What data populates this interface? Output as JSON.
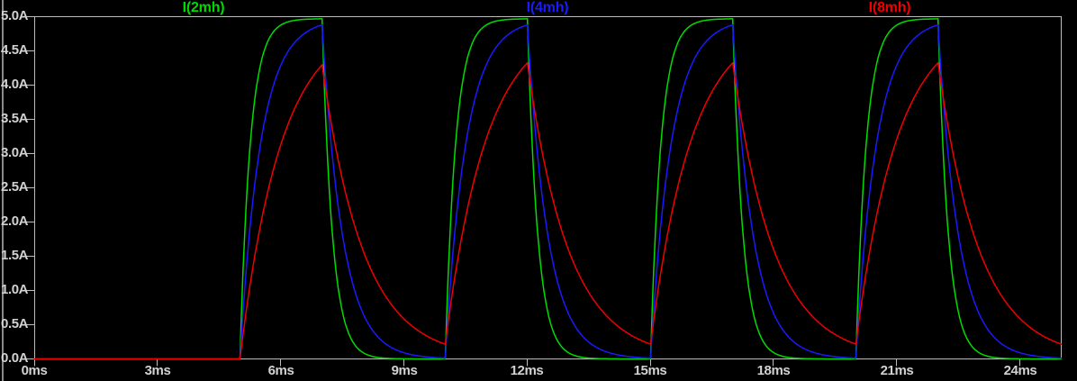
{
  "window": {
    "background": "#000000",
    "left_border_color": "#8a8a8a"
  },
  "chart_data": {
    "type": "line",
    "title": "",
    "x_unit": "ms",
    "y_unit": "A",
    "xlim_ms": [
      0,
      25
    ],
    "ylim_A": [
      0,
      5
    ],
    "grid": false,
    "legend_position": "top",
    "axis_color": "#bcbcbc",
    "text_color": "#d2d2d2",
    "x_ticks": [
      "0ms",
      "3ms",
      "6ms",
      "9ms",
      "12ms",
      "15ms",
      "18ms",
      "21ms",
      "24ms"
    ],
    "y_ticks": [
      "5.0A",
      "4.5A",
      "4.0A",
      "3.5A",
      "3.0A",
      "2.5A",
      "2.0A",
      "1.5A",
      "1.0A",
      "0.5A",
      "0.0A"
    ],
    "pulse_drive": {
      "delay_ms": 5,
      "on_ms": 2,
      "period_ms": 5,
      "steady_amplitude_A": 4.97
    },
    "sample_t_ms": [
      0,
      1,
      2,
      3,
      4,
      5,
      6,
      7,
      8,
      9,
      10,
      11,
      12,
      13,
      14,
      15,
      16,
      17,
      18,
      19,
      20,
      21,
      22,
      23,
      24,
      25
    ],
    "series": [
      {
        "label": "I(2mh)",
        "color": "#00dc00",
        "tau_ms": 0.25,
        "peak_A": 4.97,
        "sample_i_A": [
          0,
          0,
          0,
          0,
          0,
          0,
          4.88,
          4.97,
          0.09,
          0,
          0,
          4.88,
          4.97,
          0.09,
          0,
          0,
          4.88,
          4.97,
          0.09,
          0,
          0,
          4.88,
          4.97,
          0.09,
          0,
          0
        ]
      },
      {
        "label": "I(4mh)",
        "color": "#1a1aff",
        "tau_ms": 0.5,
        "peak_A": 4.88,
        "sample_i_A": [
          0,
          0,
          0,
          0,
          0,
          0,
          4.3,
          4.88,
          0.66,
          0.09,
          0.01,
          4.3,
          4.88,
          0.66,
          0.09,
          0.01,
          4.3,
          4.88,
          0.66,
          0.09,
          0.01,
          4.3,
          4.88,
          0.66,
          0.09,
          0.01
        ]
      },
      {
        "label": "I(8mh)",
        "color": "#f00000",
        "tau_ms": 1.0,
        "peak_A": 4.33,
        "sample_i_A": [
          0,
          0,
          0,
          0,
          0,
          0,
          3.14,
          4.3,
          1.58,
          0.58,
          0.21,
          3.22,
          4.33,
          1.59,
          0.59,
          0.22,
          3.22,
          4.33,
          1.59,
          0.59,
          0.22,
          3.22,
          4.33,
          1.59,
          0.59,
          0.22
        ]
      }
    ]
  }
}
